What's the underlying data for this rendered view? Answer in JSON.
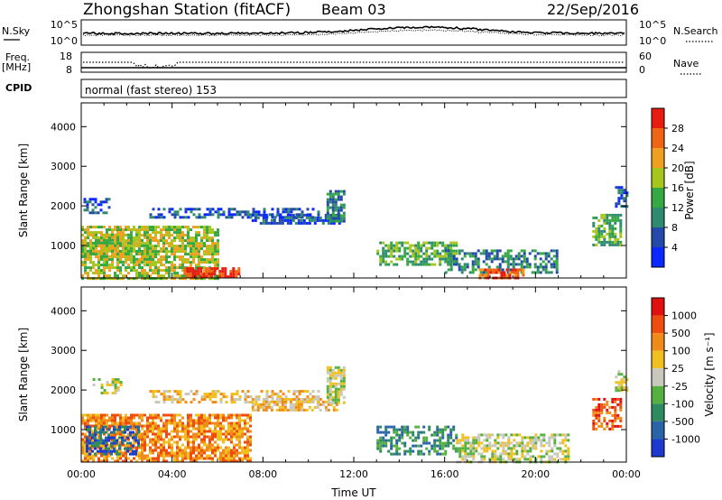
{
  "header": {
    "station": "Zhongshan Station (fitACF)",
    "beam": "Beam 03",
    "date": "22/Sep/2016"
  },
  "top_panels": {
    "nsky_label": "N.Sky",
    "nsky_ticks": [
      "10^5",
      "10^0"
    ],
    "nsearch_label": "N.Search",
    "nsearch_ticks": [
      "10^5",
      "10^0"
    ],
    "freq_label_1": "Freq.",
    "freq_label_2": "[MHz]",
    "freq_ticks": [
      "18",
      "8"
    ],
    "nave_label": "Nave",
    "nave_ticks": [
      "60",
      "0"
    ],
    "cpid_label": "CPID",
    "cpid_text": "normal (fast stereo) 153"
  },
  "chart_data": [
    {
      "type": "heatmap",
      "name": "power-panel",
      "ylabel": "Slant Range [km]",
      "xlabel": "",
      "xlim": [
        0,
        24
      ],
      "ylim": [
        180,
        4600
      ],
      "yticks": [
        "1000",
        "2000",
        "3000",
        "4000"
      ],
      "colorbar_label": "Power [dB]",
      "colorbar_ticks": [
        "4",
        "8",
        "12",
        "16",
        "20",
        "24",
        "28"
      ],
      "colors": [
        "#0a28ff",
        "#234aa8",
        "#2f8a70",
        "#34a843",
        "#a6c61b",
        "#f0a020",
        "#f06514",
        "#e81c10"
      ],
      "regions": [
        {
          "x0": 0.0,
          "x1": 6.0,
          "y0": 180,
          "y1": 1500,
          "density": 0.75,
          "level": 4
        },
        {
          "x0": 4.5,
          "x1": 7.0,
          "y0": 180,
          "y1": 450,
          "density": 0.8,
          "level": 7
        },
        {
          "x0": 0.0,
          "x1": 3.0,
          "y0": 600,
          "y1": 1300,
          "density": 0.6,
          "level": 4
        },
        {
          "x0": 0.1,
          "x1": 1.2,
          "y0": 1800,
          "y1": 2200,
          "density": 0.5,
          "level": 1
        },
        {
          "x0": 3.0,
          "x1": 10.5,
          "y0": 1700,
          "y1": 1950,
          "density": 0.55,
          "level": 1
        },
        {
          "x0": 7.5,
          "x1": 11.4,
          "y0": 1550,
          "y1": 1800,
          "density": 0.7,
          "level": 1
        },
        {
          "x0": 10.8,
          "x1": 11.6,
          "y0": 1600,
          "y1": 2400,
          "density": 0.8,
          "level": 2
        },
        {
          "x0": 13.0,
          "x1": 16.5,
          "y0": 500,
          "y1": 1100,
          "density": 0.6,
          "level": 3
        },
        {
          "x0": 16.0,
          "x1": 21.0,
          "y0": 300,
          "y1": 900,
          "density": 0.55,
          "level": 2
        },
        {
          "x0": 17.5,
          "x1": 19.5,
          "y0": 180,
          "y1": 420,
          "density": 0.7,
          "level": 6
        },
        {
          "x0": 22.5,
          "x1": 23.8,
          "y0": 1000,
          "y1": 1800,
          "density": 0.65,
          "level": 3
        },
        {
          "x0": 23.5,
          "x1": 24.0,
          "y0": 2000,
          "y1": 2500,
          "density": 0.6,
          "level": 1
        }
      ]
    },
    {
      "type": "heatmap",
      "name": "velocity-panel",
      "ylabel": "Slant Range [km]",
      "xlabel": "Time UT",
      "xlim": [
        0,
        24
      ],
      "ylim": [
        180,
        4600
      ],
      "yticks": [
        "1000",
        "2000",
        "3000",
        "4000"
      ],
      "xticks": [
        "00:00",
        "04:00",
        "08:00",
        "12:00",
        "16:00",
        "20:00",
        "00:00"
      ],
      "colorbar_label": "Velocity [m s⁻¹]",
      "colorbar_ticks": [
        "1000",
        "500",
        "100",
        "25",
        "-25",
        "-100",
        "-500",
        "-1000"
      ],
      "colors": [
        "#1c3ad0",
        "#2a64a8",
        "#2e8a60",
        "#55b040",
        "#c8c8bc",
        "#f0c020",
        "#f08a18",
        "#f04c10",
        "#e01010"
      ],
      "regions": [
        {
          "x0": 0.0,
          "x1": 7.5,
          "y0": 180,
          "y1": 1400,
          "density": 0.75,
          "level": 6
        },
        {
          "x0": 0.2,
          "x1": 2.5,
          "y0": 400,
          "y1": 1100,
          "density": 0.6,
          "level": 1
        },
        {
          "x0": 0.5,
          "x1": 1.8,
          "y0": 1900,
          "y1": 2300,
          "density": 0.45,
          "level": 4
        },
        {
          "x0": 3.0,
          "x1": 10.5,
          "y0": 1700,
          "y1": 2000,
          "density": 0.5,
          "level": 5
        },
        {
          "x0": 7.5,
          "x1": 11.2,
          "y0": 1500,
          "y1": 1800,
          "density": 0.7,
          "level": 5
        },
        {
          "x0": 10.8,
          "x1": 11.6,
          "y0": 1700,
          "y1": 2600,
          "density": 0.7,
          "level": 4
        },
        {
          "x0": 13.0,
          "x1": 16.5,
          "y0": 400,
          "y1": 1100,
          "density": 0.55,
          "level": 2
        },
        {
          "x0": 16.5,
          "x1": 21.5,
          "y0": 200,
          "y1": 900,
          "density": 0.6,
          "level": 4
        },
        {
          "x0": 22.5,
          "x1": 23.8,
          "y0": 1000,
          "y1": 1800,
          "density": 0.6,
          "level": 7
        },
        {
          "x0": 23.5,
          "x1": 24.0,
          "y0": 2000,
          "y1": 2500,
          "density": 0.6,
          "level": 4
        }
      ]
    }
  ]
}
